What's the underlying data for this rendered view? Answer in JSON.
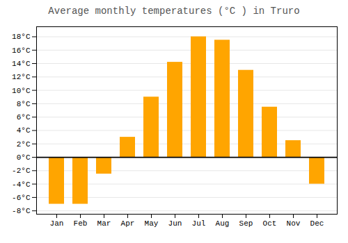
{
  "chart_data": {
    "type": "bar",
    "title": "Average monthly temperatures (°C ) in Truro",
    "categories": [
      "Jan",
      "Feb",
      "Mar",
      "Apr",
      "May",
      "Jun",
      "Jul",
      "Aug",
      "Sep",
      "Oct",
      "Nov",
      "Dec"
    ],
    "values": [
      -7,
      -7,
      -2.5,
      3,
      9,
      14.2,
      18,
      17.5,
      13,
      7.5,
      2.5,
      -4
    ],
    "color": "#FFA500",
    "ylim": [
      -8.5,
      19.5
    ],
    "yticks": [
      {
        "value": -8,
        "label": "-8°C"
      },
      {
        "value": -6,
        "label": "-6°C"
      },
      {
        "value": -4,
        "label": "-4°C"
      },
      {
        "value": -2,
        "label": "-2°C"
      },
      {
        "value": 0,
        "label": "0°C"
      },
      {
        "value": 2,
        "label": "2°C"
      },
      {
        "value": 4,
        "label": "4°C"
      },
      {
        "value": 6,
        "label": "6°C"
      },
      {
        "value": 8,
        "label": "8°C"
      },
      {
        "value": 10,
        "label": "10°C"
      },
      {
        "value": 12,
        "label": "12°C"
      },
      {
        "value": 14,
        "label": "14°C"
      },
      {
        "value": 16,
        "label": "16°C"
      },
      {
        "value": 18,
        "label": "18°C"
      }
    ],
    "grid": true
  }
}
